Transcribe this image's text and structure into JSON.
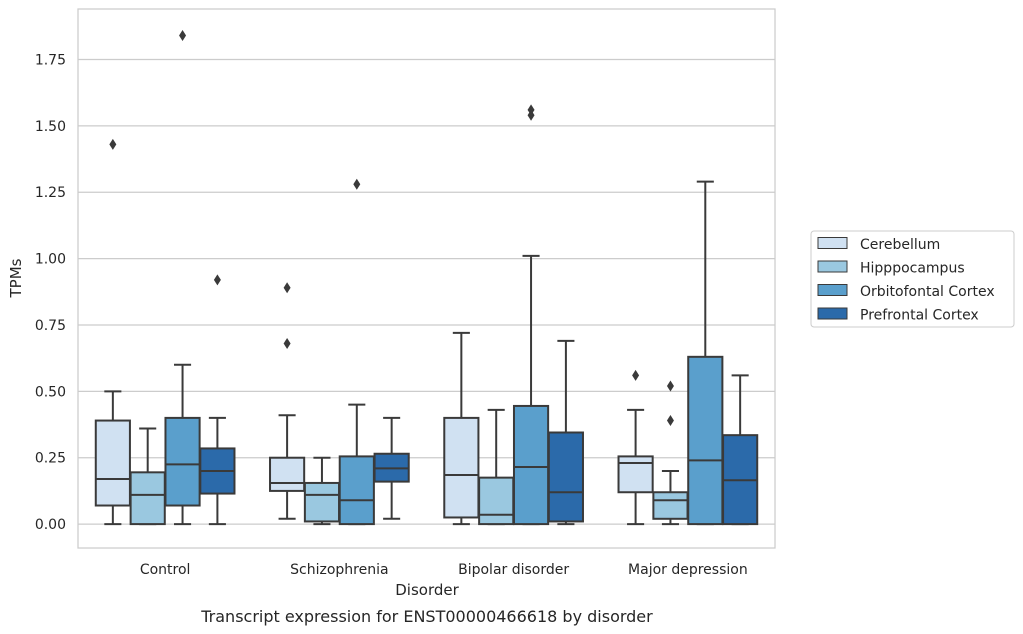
{
  "chart_data": {
    "type": "boxplot",
    "caption": "Transcript expression for ENST00000466618 by disorder",
    "xlabel": "Disorder",
    "ylabel": "TPMs",
    "ylim": [
      -0.09,
      1.94
    ],
    "yticks": [
      0.0,
      0.25,
      0.5,
      0.75,
      1.0,
      1.25,
      1.5,
      1.75
    ],
    "ytick_labels": [
      "0.00",
      "0.25",
      "0.50",
      "0.75",
      "1.00",
      "1.25",
      "1.50",
      "1.75"
    ],
    "grid": "horizontal",
    "legend_placement": "right",
    "categories": [
      "Control",
      "Schizophrenia",
      "Bipolar disorder",
      "Major depression"
    ],
    "series": [
      {
        "name": "Cerebellum",
        "color": "#d0e1f2",
        "boxes": [
          {
            "whislo": 0.0,
            "q1": 0.07,
            "med": 0.17,
            "q3": 0.39,
            "whishi": 0.5,
            "fliers": [
              1.43
            ]
          },
          {
            "whislo": 0.02,
            "q1": 0.125,
            "med": 0.155,
            "q3": 0.25,
            "whishi": 0.41,
            "fliers": [
              0.68,
              0.89
            ]
          },
          {
            "whislo": 0.0,
            "q1": 0.025,
            "med": 0.185,
            "q3": 0.4,
            "whishi": 0.72,
            "fliers": []
          },
          {
            "whislo": 0.0,
            "q1": 0.12,
            "med": 0.23,
            "q3": 0.255,
            "whishi": 0.43,
            "fliers": [
              0.56
            ]
          }
        ]
      },
      {
        "name": "Hipppocampus",
        "color": "#9ac8e0",
        "boxes": [
          {
            "whislo": 0.0,
            "q1": 0.0,
            "med": 0.11,
            "q3": 0.195,
            "whishi": 0.36,
            "fliers": []
          },
          {
            "whislo": 0.0,
            "q1": 0.01,
            "med": 0.11,
            "q3": 0.155,
            "whishi": 0.25,
            "fliers": []
          },
          {
            "whislo": 0.0,
            "q1": 0.0,
            "med": 0.035,
            "q3": 0.175,
            "whishi": 0.43,
            "fliers": []
          },
          {
            "whislo": 0.0,
            "q1": 0.02,
            "med": 0.09,
            "q3": 0.12,
            "whishi": 0.2,
            "fliers": [
              0.39,
              0.52
            ]
          }
        ]
      },
      {
        "name": "Orbitofontal Cortex",
        "color": "#5a9fcc",
        "boxes": [
          {
            "whislo": 0.0,
            "q1": 0.07,
            "med": 0.225,
            "q3": 0.4,
            "whishi": 0.6,
            "fliers": [
              1.84
            ]
          },
          {
            "whislo": 0.0,
            "q1": 0.0,
            "med": 0.09,
            "q3": 0.255,
            "whishi": 0.45,
            "fliers": [
              1.28
            ]
          },
          {
            "whislo": 0.0,
            "q1": 0.0,
            "med": 0.215,
            "q3": 0.445,
            "whishi": 1.01,
            "fliers": [
              1.54,
              1.56
            ]
          },
          {
            "whislo": 0.0,
            "q1": 0.0,
            "med": 0.24,
            "q3": 0.63,
            "whishi": 1.29,
            "fliers": []
          }
        ]
      },
      {
        "name": "Prefrontal Cortex",
        "color": "#2b6aaa",
        "boxes": [
          {
            "whislo": 0.0,
            "q1": 0.115,
            "med": 0.2,
            "q3": 0.285,
            "whishi": 0.4,
            "fliers": [
              0.92
            ]
          },
          {
            "whislo": 0.02,
            "q1": 0.16,
            "med": 0.21,
            "q3": 0.265,
            "whishi": 0.4,
            "fliers": []
          },
          {
            "whislo": 0.0,
            "q1": 0.01,
            "med": 0.12,
            "q3": 0.345,
            "whishi": 0.69,
            "fliers": []
          },
          {
            "whislo": 0.0,
            "q1": 0.0,
            "med": 0.165,
            "q3": 0.335,
            "whishi": 0.56,
            "fliers": []
          }
        ]
      }
    ]
  }
}
